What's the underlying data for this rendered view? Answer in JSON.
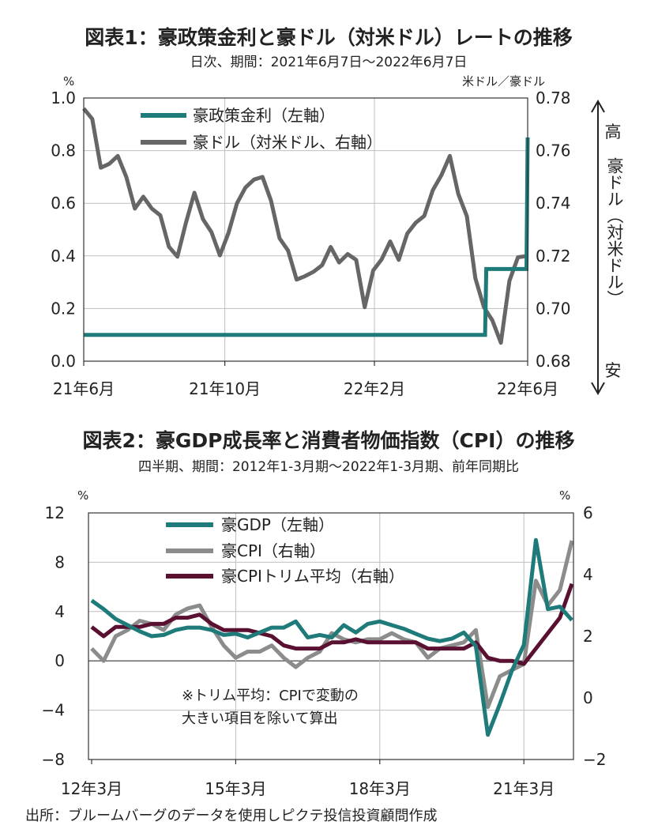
{
  "chart1": {
    "title": "図表1：豪政策金利と豪ドル（対米ドル）レートの推移",
    "subtitle": "日次、期間：2021年6月7日～2022年6月7日",
    "left_unit": "%",
    "right_unit": "米ドル／豪ドル",
    "right_axis_note": [
      "高",
      "豪ドル（対米ドル）",
      "安"
    ],
    "y_left_ticks": [
      "1.0",
      "0.8",
      "0.6",
      "0.4",
      "0.2",
      "0.0"
    ],
    "y_right_ticks": [
      "0.78",
      "0.76",
      "0.74",
      "0.72",
      "0.70",
      "0.68"
    ],
    "x_ticks": [
      "21年6月",
      "21年10月",
      "22年2月",
      "22年6月"
    ],
    "legend": [
      "豪政策金利（左軸）",
      "豪ドル（対米ドル、右軸）"
    ],
    "colors": {
      "rate": "#1f7a7a",
      "aud": "#666666"
    }
  },
  "chart1_data": {
    "type": "line",
    "x_range": [
      "2021-06-07",
      "2022-06-07"
    ],
    "ylim_left": [
      0,
      1.0
    ],
    "ylim_right": [
      0.68,
      0.78
    ],
    "series": [
      {
        "name": "豪政策金利（左軸）",
        "axis": "left",
        "points": [
          [
            "2021-06-07",
            0.1
          ],
          [
            "2022-05-03",
            0.1
          ],
          [
            "2022-05-04",
            0.35
          ],
          [
            "2022-06-06",
            0.35
          ],
          [
            "2022-06-07",
            0.85
          ]
        ]
      },
      {
        "name": "豪ドル（対米ドル、右軸）",
        "axis": "right",
        "points": [
          [
            "2021-06-07",
            0.776
          ],
          [
            "2021-06-14",
            0.772
          ],
          [
            "2021-06-21",
            0.7535
          ],
          [
            "2021-06-28",
            0.755
          ],
          [
            "2021-07-05",
            0.758
          ],
          [
            "2021-07-12",
            0.75
          ],
          [
            "2021-07-19",
            0.738
          ],
          [
            "2021-07-26",
            0.7425
          ],
          [
            "2021-08-02",
            0.738
          ],
          [
            "2021-08-09",
            0.7354
          ],
          [
            "2021-08-16",
            0.7235
          ],
          [
            "2021-08-23",
            0.7197
          ],
          [
            "2021-08-30",
            0.7325
          ],
          [
            "2021-09-06",
            0.744
          ],
          [
            "2021-09-13",
            0.734
          ],
          [
            "2021-09-20",
            0.729
          ],
          [
            "2021-09-27",
            0.7202
          ],
          [
            "2021-10-04",
            0.7287
          ],
          [
            "2021-10-11",
            0.74
          ],
          [
            "2021-10-18",
            0.746
          ],
          [
            "2021-10-25",
            0.749
          ],
          [
            "2021-11-01",
            0.75
          ],
          [
            "2021-11-08",
            0.741
          ],
          [
            "2021-11-15",
            0.7267
          ],
          [
            "2021-11-22",
            0.722
          ],
          [
            "2021-11-29",
            0.711
          ],
          [
            "2021-12-06",
            0.7123
          ],
          [
            "2021-12-13",
            0.714
          ],
          [
            "2021-12-20",
            0.7165
          ],
          [
            "2021-12-27",
            0.7234
          ],
          [
            "2022-01-03",
            0.7175
          ],
          [
            "2022-01-10",
            0.7207
          ],
          [
            "2022-01-17",
            0.7185
          ],
          [
            "2022-01-24",
            0.7005
          ],
          [
            "2022-01-31",
            0.7145
          ],
          [
            "2022-02-07",
            0.7187
          ],
          [
            "2022-02-14",
            0.7255
          ],
          [
            "2022-02-21",
            0.7185
          ],
          [
            "2022-02-28",
            0.7285
          ],
          [
            "2022-03-07",
            0.7326
          ],
          [
            "2022-03-14",
            0.7352
          ],
          [
            "2022-03-21",
            0.745
          ],
          [
            "2022-03-28",
            0.7506
          ],
          [
            "2022-04-04",
            0.758
          ],
          [
            "2022-04-11",
            0.7435
          ],
          [
            "2022-04-18",
            0.7351
          ],
          [
            "2022-04-25",
            0.7115
          ],
          [
            "2022-05-02",
            0.7005
          ],
          [
            "2022-05-09",
            0.6955
          ],
          [
            "2022-05-16",
            0.687
          ],
          [
            "2022-05-23",
            0.7105
          ],
          [
            "2022-05-30",
            0.7195
          ],
          [
            "2022-06-07",
            0.72
          ]
        ]
      }
    ]
  },
  "chart2": {
    "title": "図表2：豪GDP成長率と消費者物価指数（CPI）の推移",
    "subtitle": "四半期、期間：2012年1-3月期～2022年1-3月期、前年同期比",
    "left_unit": "%",
    "right_unit": "%",
    "y_left_ticks": [
      "12",
      "8",
      "4",
      "0",
      "−4",
      "−8"
    ],
    "y_right_ticks": [
      "6",
      "4",
      "2",
      "0",
      "−2"
    ],
    "x_ticks": [
      "12年3月",
      "15年3月",
      "18年3月",
      "21年3月"
    ],
    "legend": [
      "豪GDP（左軸）",
      "豪CPI（右軸）",
      "豪CPIトリム平均（右軸）"
    ],
    "note": [
      "※トリム平均：CPIで変動の",
      "大きい項目を除いて算出"
    ],
    "colors": {
      "gdp": "#1f7a7a",
      "cpi": "#8c8c8c",
      "trim": "#5a1030"
    }
  },
  "chart2_data": {
    "type": "line",
    "x_quarters": [
      "2012Q1",
      "2012Q2",
      "2012Q3",
      "2012Q4",
      "2013Q1",
      "2013Q2",
      "2013Q3",
      "2013Q4",
      "2014Q1",
      "2014Q2",
      "2014Q3",
      "2014Q4",
      "2015Q1",
      "2015Q2",
      "2015Q3",
      "2015Q4",
      "2016Q1",
      "2016Q2",
      "2016Q3",
      "2016Q4",
      "2017Q1",
      "2017Q2",
      "2017Q3",
      "2017Q4",
      "2018Q1",
      "2018Q2",
      "2018Q3",
      "2018Q4",
      "2019Q1",
      "2019Q2",
      "2019Q3",
      "2019Q4",
      "2020Q1",
      "2020Q2",
      "2020Q3",
      "2020Q4",
      "2021Q1",
      "2021Q2",
      "2021Q3",
      "2021Q4",
      "2022Q1"
    ],
    "ylim_left": [
      -8,
      12
    ],
    "ylim_right": [
      -2,
      6
    ],
    "series": [
      {
        "name": "豪GDP（左軸）",
        "axis": "left",
        "values": [
          4.9,
          4.2,
          3.4,
          2.9,
          2.4,
          2.0,
          2.1,
          2.5,
          2.7,
          2.7,
          2.5,
          2.1,
          2.2,
          1.9,
          2.3,
          2.7,
          2.7,
          3.2,
          1.9,
          2.1,
          1.9,
          2.9,
          2.3,
          3.0,
          3.2,
          2.9,
          2.6,
          2.2,
          1.8,
          1.6,
          1.8,
          2.3,
          1.2,
          -6.0,
          -3.5,
          -0.8,
          1.3,
          9.8,
          4.2,
          4.4,
          3.3
        ]
      },
      {
        "name": "豪CPI（右軸）",
        "axis": "right",
        "values": [
          1.6,
          1.2,
          2.0,
          2.2,
          2.5,
          2.4,
          2.2,
          2.7,
          2.9,
          3.0,
          2.3,
          1.7,
          1.3,
          1.5,
          1.5,
          1.7,
          1.3,
          1.0,
          1.3,
          1.5,
          2.1,
          1.9,
          1.8,
          1.9,
          1.9,
          2.1,
          1.9,
          1.8,
          1.3,
          1.6,
          1.7,
          1.8,
          2.2,
          -0.3,
          0.7,
          0.9,
          1.1,
          3.8,
          3.0,
          3.5,
          5.1
        ]
      },
      {
        "name": "豪CPIトリム平均（右軸）",
        "axis": "right",
        "values": [
          2.3,
          2.0,
          2.3,
          2.3,
          2.3,
          2.4,
          2.4,
          2.6,
          2.6,
          2.7,
          2.4,
          2.2,
          2.2,
          2.2,
          2.1,
          2.0,
          1.7,
          1.6,
          1.6,
          1.6,
          1.8,
          1.8,
          1.9,
          1.8,
          1.8,
          1.8,
          1.8,
          1.8,
          1.6,
          1.6,
          1.6,
          1.6,
          1.8,
          1.3,
          1.2,
          1.2,
          1.1,
          1.6,
          2.1,
          2.6,
          3.7
        ]
      }
    ]
  },
  "source": "出所：ブルームバーグのデータを使用しピクテ投信投資顧問作成"
}
